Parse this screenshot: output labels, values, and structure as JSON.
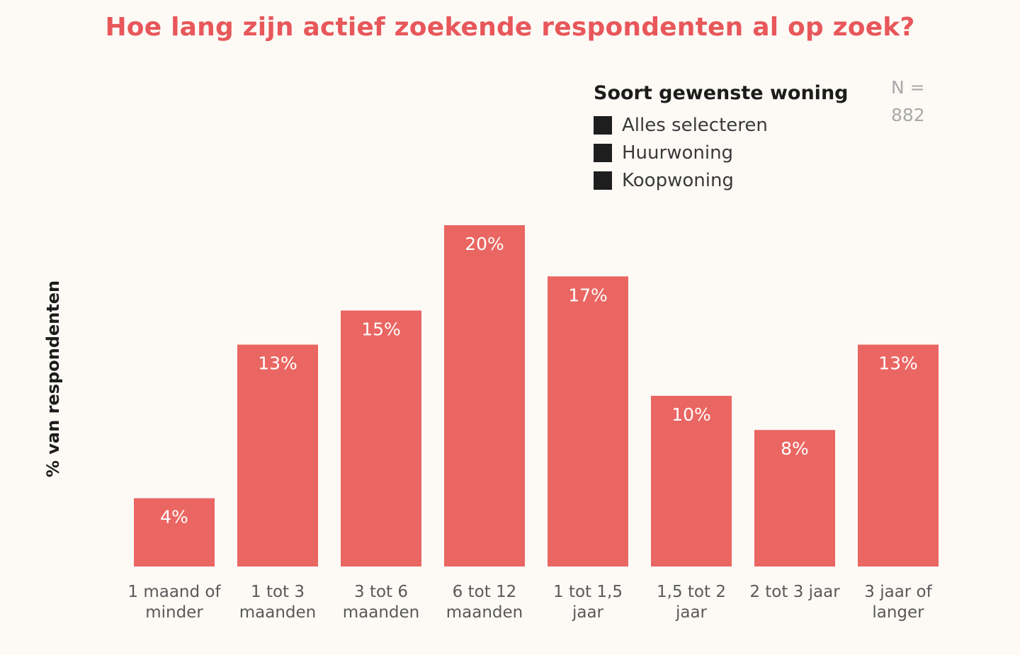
{
  "title": "Hoe lang zijn actief zoekende respondenten al op zoek?",
  "legend": {
    "title": "Soort gewenste woning",
    "items": [
      {
        "label": "Alles selecteren"
      },
      {
        "label": "Huurwoning"
      },
      {
        "label": "Koopwoning"
      }
    ]
  },
  "sample_note": {
    "line1": "N =",
    "line2": "882"
  },
  "colors": {
    "bar": "#ea6662",
    "title": "#e8575a",
    "swatch": "#1e1e1e"
  },
  "chart_data": {
    "type": "bar",
    "title": "Hoe lang zijn actief zoekende respondenten al op zoek?",
    "ylabel": "% van respondenten",
    "xlabel": "",
    "ylim": [
      0,
      20
    ],
    "grid": false,
    "legend_position": "top-right",
    "categories": [
      [
        "1 maand of",
        "minder"
      ],
      [
        "1 tot 3",
        "maanden"
      ],
      [
        "3 tot 6",
        "maanden"
      ],
      [
        "6 tot 12",
        "maanden"
      ],
      [
        "1 tot 1,5",
        "jaar"
      ],
      [
        "1,5 tot 2",
        "jaar"
      ],
      [
        "2 tot 3 jaar"
      ],
      [
        "3 jaar of",
        "langer"
      ]
    ],
    "values": [
      4,
      13,
      15,
      20,
      17,
      10,
      8,
      13
    ],
    "value_labels": [
      "4%",
      "13%",
      "15%",
      "20%",
      "17%",
      "10%",
      "8%",
      "13%"
    ]
  }
}
